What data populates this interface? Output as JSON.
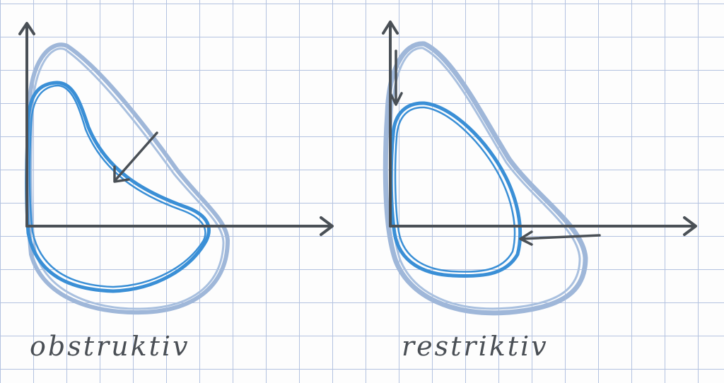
{
  "panels": [
    {
      "label": "obstruktiv",
      "colors": {
        "normal_loop": "#9fb7d9",
        "patient_loop": "#3a8fd6",
        "axes": "#4a5056"
      }
    },
    {
      "label": "restriktiv",
      "colors": {
        "normal_loop": "#9fb7d9",
        "patient_loop": "#3a8fd6",
        "axes": "#4a5056"
      }
    }
  ]
}
